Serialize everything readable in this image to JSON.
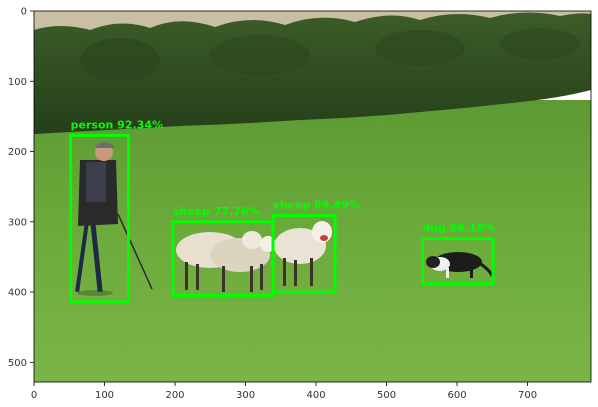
{
  "plot": {
    "x_ticks": [
      "0",
      "100",
      "200",
      "300",
      "400",
      "500",
      "600",
      "700"
    ],
    "y_ticks": [
      "0",
      "100",
      "200",
      "300",
      "400",
      "500"
    ]
  },
  "detections": [
    {
      "label": "person 92.34%",
      "x_range": [
        52,
        134
      ],
      "y_range": [
        177,
        414
      ]
    },
    {
      "label": "sheep 77.76%",
      "x_range": [
        197,
        339
      ],
      "y_range": [
        300,
        405
      ]
    },
    {
      "label": "sheep 89.49%",
      "x_range": [
        339,
        427
      ],
      "y_range": [
        291,
        400
      ]
    },
    {
      "label": "dog 66.19%",
      "x_range": [
        551,
        651
      ],
      "y_range": [
        324,
        388
      ]
    }
  ],
  "colors": {
    "box": "#00ff00",
    "grass": "#6aa83a",
    "hedge": "#2f4d1f",
    "sky": "#c9bfa4"
  }
}
